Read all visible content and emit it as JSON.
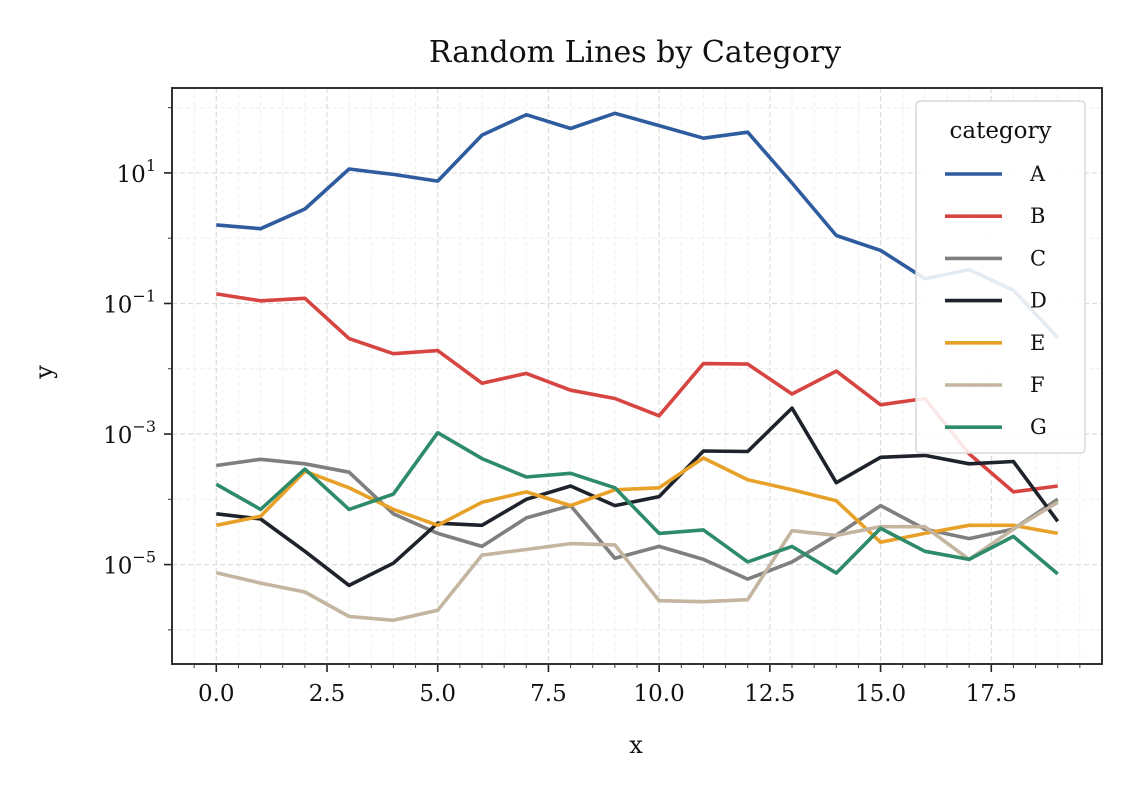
{
  "chart_data": {
    "type": "line",
    "title": "Random Lines by Category",
    "xlabel": "x",
    "ylabel": "y",
    "yscale": "log",
    "xlim": [
      -1,
      20
    ],
    "ylim": [
      3e-07,
      200
    ],
    "grid": true,
    "legend": {
      "title": "category",
      "placement": "top-right"
    },
    "x_ticks": [
      {
        "value": 0.0,
        "label": "0.0"
      },
      {
        "value": 2.5,
        "label": "2.5"
      },
      {
        "value": 5.0,
        "label": "5.0"
      },
      {
        "value": 7.5,
        "label": "7.5"
      },
      {
        "value": 10.0,
        "label": "10.0"
      },
      {
        "value": 12.5,
        "label": "12.5"
      },
      {
        "value": 15.0,
        "label": "15.0"
      },
      {
        "value": 17.5,
        "label": "17.5"
      }
    ],
    "y_ticks": [
      {
        "value": 10,
        "base": "10",
        "exp": "1"
      },
      {
        "value": 0.1,
        "base": "10",
        "exp": "−1"
      },
      {
        "value": 0.001,
        "base": "10",
        "exp": "−3"
      },
      {
        "value": 1e-05,
        "base": "10",
        "exp": "−5"
      }
    ],
    "x": [
      0,
      1,
      2,
      3,
      4,
      5,
      6,
      7,
      8,
      9,
      10,
      11,
      12,
      13,
      14,
      15,
      16,
      17,
      18,
      19
    ],
    "series": [
      {
        "name": "A",
        "color": "#2e5c9e",
        "values": [
          1.6,
          1.4,
          2.8,
          11.5,
          9.5,
          7.5,
          38,
          78,
          48,
          82,
          53,
          34,
          42,
          7.0,
          1.1,
          0.65,
          0.24,
          0.33,
          0.16,
          0.03
        ]
      },
      {
        "name": "B",
        "color": "#d64541",
        "values": [
          0.14,
          0.11,
          0.12,
          0.029,
          0.017,
          0.019,
          0.006,
          0.0085,
          0.0047,
          0.0035,
          0.0019,
          0.012,
          0.0118,
          0.0041,
          0.0092,
          0.0028,
          0.0035,
          0.0005,
          0.00013,
          0.00016
        ]
      },
      {
        "name": "C",
        "color": "#7f7f7f",
        "values": [
          0.00033,
          0.00041,
          0.00035,
          0.00026,
          6e-05,
          3e-05,
          1.9e-05,
          5.2e-05,
          8e-05,
          1.25e-05,
          1.9e-05,
          1.2e-05,
          6e-06,
          1.1e-05,
          2.8e-05,
          8e-05,
          3.5e-05,
          2.5e-05,
          3.5e-05,
          0.0001
        ]
      },
      {
        "name": "D",
        "color": "#1e232b",
        "values": [
          6e-05,
          5e-05,
          1.6e-05,
          4.8e-06,
          1.05e-05,
          4.3e-05,
          4e-05,
          0.0001,
          0.00016,
          8e-05,
          0.00011,
          0.00055,
          0.00054,
          0.0025,
          0.00018,
          0.00044,
          0.00047,
          0.00035,
          0.00038,
          4.6e-05
        ]
      },
      {
        "name": "E",
        "color": "#e8a128",
        "values": [
          4e-05,
          5.5e-05,
          0.00027,
          0.00015,
          7e-05,
          4e-05,
          9e-05,
          0.00013,
          8e-05,
          0.00014,
          0.00015,
          0.00043,
          0.0002,
          0.00014,
          9.5e-05,
          2.2e-05,
          3e-05,
          4e-05,
          4e-05,
          3e-05
        ]
      },
      {
        "name": "F",
        "color": "#c4b5a0",
        "values": [
          7.5e-06,
          5.2e-06,
          3.8e-06,
          1.6e-06,
          1.4e-06,
          2e-06,
          1.4e-05,
          1.7e-05,
          2.1e-05,
          2e-05,
          2.8e-06,
          2.7e-06,
          2.9e-06,
          3.3e-05,
          2.8e-05,
          3.8e-05,
          3.8e-05,
          1.2e-05,
          3.5e-05,
          9e-05
        ]
      },
      {
        "name": "G",
        "color": "#2e8b6a",
        "values": [
          0.00017,
          7e-05,
          0.00029,
          7e-05,
          0.00012,
          0.00105,
          0.00042,
          0.00022,
          0.00025,
          0.00015,
          3e-05,
          3.4e-05,
          1.1e-05,
          1.9e-05,
          7.4e-06,
          3.6e-05,
          1.6e-05,
          1.2e-05,
          2.7e-05,
          7.2e-06
        ]
      }
    ]
  }
}
